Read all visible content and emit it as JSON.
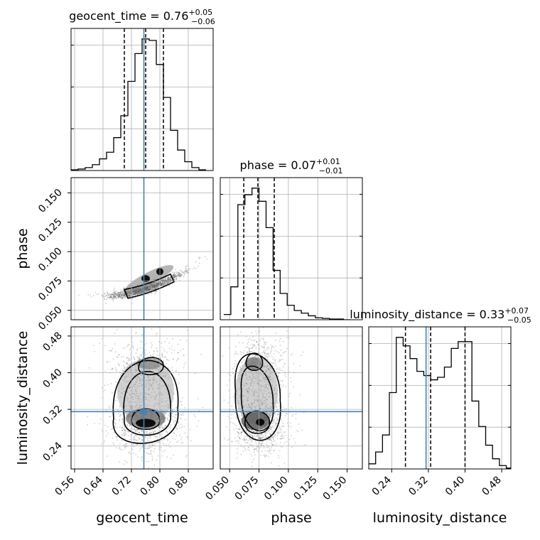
{
  "chart_data": {
    "type": "corner",
    "grid": true,
    "parameters": [
      "geocent_time",
      "phase",
      "luminosity_distance"
    ],
    "truth": {
      "geocent_time": 0.755,
      "phase": null,
      "luminosity_distance": 0.315
    },
    "ranges": {
      "geocent_time": [
        0.55,
        0.95
      ],
      "phase": [
        0.042,
        0.163
      ],
      "luminosity_distance": [
        0.19,
        0.5
      ]
    },
    "ticks": {
      "geocent_time": [
        "0.56",
        "0.64",
        "0.72",
        "0.80",
        "0.88"
      ],
      "phase": [
        "0.050",
        "0.075",
        "0.100",
        "0.125",
        "0.150"
      ],
      "luminosity_distance": [
        "0.24",
        "0.32",
        "0.40",
        "0.48"
      ]
    },
    "axis_labels": {
      "geocent_time": "geocent_time",
      "phase": "phase",
      "luminosity_distance": "luminosity_distance"
    },
    "titles": [
      {
        "param": "geocent_time",
        "prefix": "geocent_time = 0.76",
        "plus": "+0.05",
        "minus": "−0.06",
        "median": 0.76,
        "lower": 0.7,
        "upper": 0.81
      },
      {
        "param": "phase",
        "prefix": "phase = 0.07",
        "plus": "+0.01",
        "minus": "−0.01",
        "median": 0.074,
        "lower": 0.062,
        "upper": 0.088
      },
      {
        "param": "luminosity_distance",
        "prefix": "luminosity_distance = 0.33",
        "plus": "+0.07",
        "minus": "−0.05",
        "median": 0.325,
        "lower": 0.27,
        "upper": 0.4
      }
    ],
    "histograms": {
      "geocent_time": {
        "edges": [
          0.55,
          0.57,
          0.59,
          0.61,
          0.63,
          0.65,
          0.67,
          0.69,
          0.71,
          0.73,
          0.75,
          0.77,
          0.79,
          0.81,
          0.83,
          0.85,
          0.87,
          0.89,
          0.91,
          0.93
        ],
        "counts": [
          1,
          2,
          4,
          8,
          16,
          25,
          45,
          75,
          122,
          160,
          180,
          178,
          145,
          100,
          55,
          28,
          12,
          4,
          1
        ]
      },
      "phase": {
        "edges": [
          0.045,
          0.051,
          0.057,
          0.063,
          0.069,
          0.075,
          0.081,
          0.087,
          0.093,
          0.099,
          0.105,
          0.111,
          0.117,
          0.123,
          0.129,
          0.135,
          0.141,
          0.147,
          0.153
        ],
        "counts": [
          8,
          50,
          175,
          190,
          200,
          180,
          140,
          75,
          40,
          22,
          14,
          10,
          6,
          3,
          2,
          1,
          1,
          0
        ]
      },
      "luminosity_distance": {
        "edges": [
          0.19,
          0.205,
          0.22,
          0.235,
          0.25,
          0.265,
          0.28,
          0.295,
          0.31,
          0.325,
          0.34,
          0.355,
          0.37,
          0.385,
          0.4,
          0.415,
          0.43,
          0.445,
          0.46,
          0.475,
          0.49,
          0.5
        ],
        "counts": [
          6,
          20,
          40,
          90,
          155,
          145,
          130,
          115,
          110,
          105,
          108,
          120,
          142,
          150,
          150,
          80,
          50,
          28,
          12,
          4,
          1
        ]
      }
    }
  }
}
